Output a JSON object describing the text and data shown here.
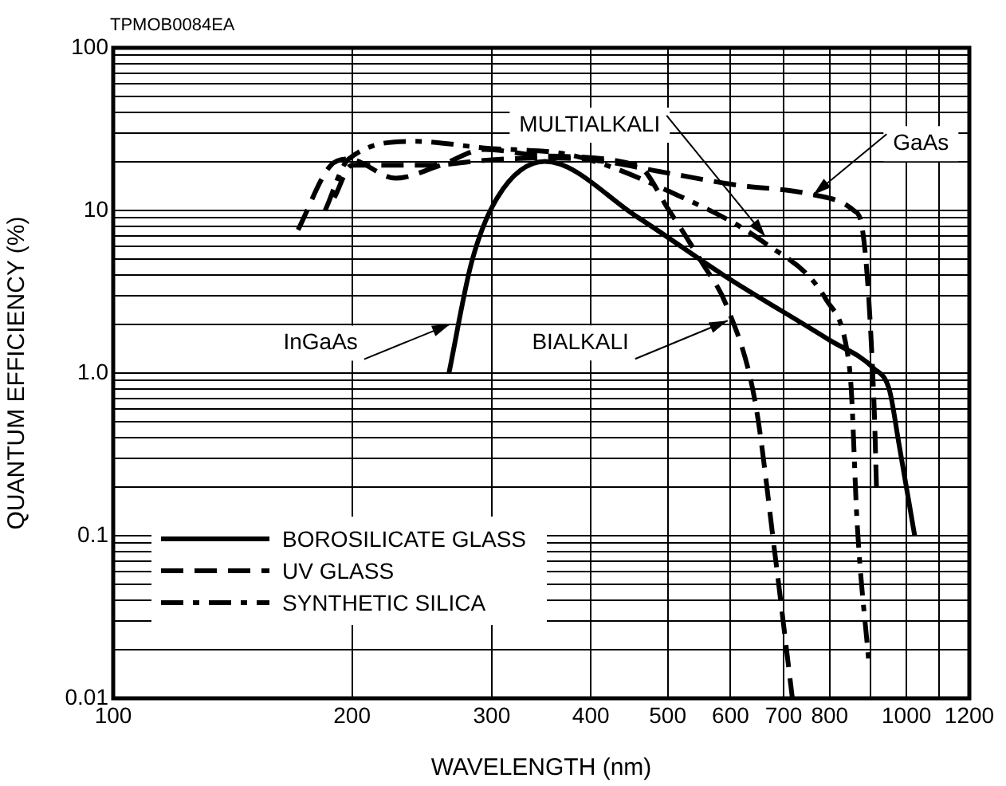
{
  "chart_data": {
    "type": "line",
    "xlabel": "WAVELENGTH (nm)",
    "ylabel": "QUANTUM EFFICIENCY (%)",
    "log": "xy",
    "grid": true,
    "legend": "bottom left",
    "marker": "none",
    "xlim": [
      100,
      1200
    ],
    "xticks": [
      100,
      200,
      300,
      400,
      500,
      600,
      700,
      800,
      {
        "value": 900,
        "label": null
      },
      1000,
      {
        "value": 1100,
        "label": null
      },
      1200
    ],
    "ylim": [
      0.01,
      100
    ],
    "yticks": [
      {
        "value": 0.01,
        "label": "0.01"
      },
      {
        "value": 0.02,
        "label": null
      },
      {
        "value": 0.03,
        "label": null
      },
      {
        "value": 0.04,
        "label": null
      },
      {
        "value": 0.05,
        "label": null
      },
      {
        "value": 0.06,
        "label": null
      },
      {
        "value": 0.07,
        "label": null
      },
      {
        "value": 0.08,
        "label": null
      },
      {
        "value": 0.09,
        "label": null
      },
      0.1,
      {
        "value": 0.2,
        "label": null
      },
      {
        "value": 0.3,
        "label": null
      },
      {
        "value": 0.4,
        "label": null
      },
      {
        "value": 0.5,
        "label": null
      },
      {
        "value": 0.6,
        "label": null
      },
      {
        "value": 0.7,
        "label": null
      },
      {
        "value": 0.8,
        "label": null
      },
      {
        "value": 0.9,
        "label": null
      },
      {
        "value": 1,
        "label": "1.0"
      },
      {
        "value": 2,
        "label": null
      },
      {
        "value": 3,
        "label": null
      },
      {
        "value": 4,
        "label": null
      },
      {
        "value": 5,
        "label": null
      },
      {
        "value": 6,
        "label": null
      },
      {
        "value": 7,
        "label": null
      },
      {
        "value": 8,
        "label": null
      },
      {
        "value": 9,
        "label": null
      },
      10,
      {
        "value": 20,
        "label": null
      },
      {
        "value": 30,
        "label": null
      },
      {
        "value": 40,
        "label": null
      },
      {
        "value": 50,
        "label": null
      },
      {
        "value": 60,
        "label": null
      },
      {
        "value": 70,
        "label": null
      },
      {
        "value": 80,
        "label": null
      },
      {
        "value": 90,
        "label": null
      },
      100
    ],
    "series": [
      {
        "name": "BOROSILICATE GLASS",
        "color": "#000000",
        "line_style": "solid",
        "x": [
          265,
          283,
          305,
          350,
          458,
          588,
          799,
          909,
          952,
          978,
          1024
        ],
        "values": [
          1.0,
          4.8,
          12,
          20,
          9.1,
          4.0,
          1.6,
          1.07,
          0.78,
          0.37,
          0.1
        ]
      },
      {
        "name": "UV GLASS",
        "color": "#000000",
        "line_style": "dashed",
        "x": [
          171,
          188,
          198,
          227,
          258,
          294,
          347,
          458,
          502,
          552,
          594,
          645,
          682,
          718
        ],
        "values": [
          7.6,
          18.9,
          20.7,
          15.8,
          18.9,
          23.7,
          21.7,
          18.9,
          10,
          4.8,
          2.55,
          0.65,
          0.08,
          0.01
        ]
      },
      {
        "name": "SYNTHETIC SILICA",
        "color": "#000000",
        "line_style": "dashdot",
        "x": [
          185,
          198,
          240,
          294,
          381,
          502,
          663,
          793,
          842,
          852,
          866,
          897
        ],
        "values": [
          10,
          20.7,
          26.6,
          24.2,
          21.7,
          13.1,
          6.3,
          2.8,
          1.35,
          0.78,
          0.126,
          0.016
        ]
      },
      {
        "color": "#000000",
        "line_style": "dashed",
        "x": [
          190,
          200,
          250,
          300,
          350,
          400,
          500,
          600,
          763,
          858,
          880,
          910,
          917
        ],
        "values": [
          12,
          19,
          19,
          20.5,
          21,
          20.5,
          17,
          14.5,
          12.5,
          10,
          7.6,
          0.65,
          0.18
        ]
      }
    ],
    "annotations": [
      "TPMOB0084EA",
      {
        "text": "InGaAs",
        "x": 266,
        "y": 2.0
      },
      {
        "text": "BIALKALI",
        "x": 595,
        "y": 2.1
      },
      {
        "text": "MULTIALKALI",
        "x": 664,
        "y": 6.9
      },
      {
        "text": "GaAs",
        "x": 763,
        "y": 12.5
      }
    ]
  }
}
